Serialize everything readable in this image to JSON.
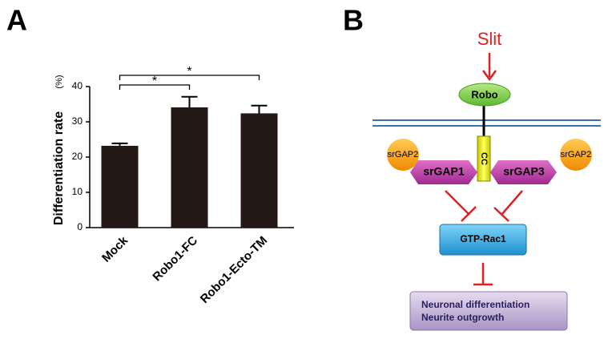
{
  "panels": [
    "A",
    "B"
  ],
  "chart_data": {
    "type": "bar",
    "y_label": "Differentiation rate",
    "y_unit": "(%)",
    "categories": [
      "Mock",
      "Robo1-FC",
      "Robo1-Ecto-TM"
    ],
    "values": [
      23.2,
      34.1,
      32.4
    ],
    "errors": [
      0.7,
      3.0,
      2.2
    ],
    "color": "#231815",
    "ylim": [
      0,
      40
    ],
    "yticks": [
      0,
      10,
      20,
      30,
      40
    ],
    "annotations": [
      "*",
      "*"
    ]
  },
  "diagram": {
    "nodes": [
      "Slit",
      "Robo",
      "CC",
      "srGAP2",
      "srGAP2",
      "srGAP1",
      "srGAP3",
      "GTP-Rac1",
      "Neuronal differentiation",
      "Neurite outgrowth"
    ]
  }
}
